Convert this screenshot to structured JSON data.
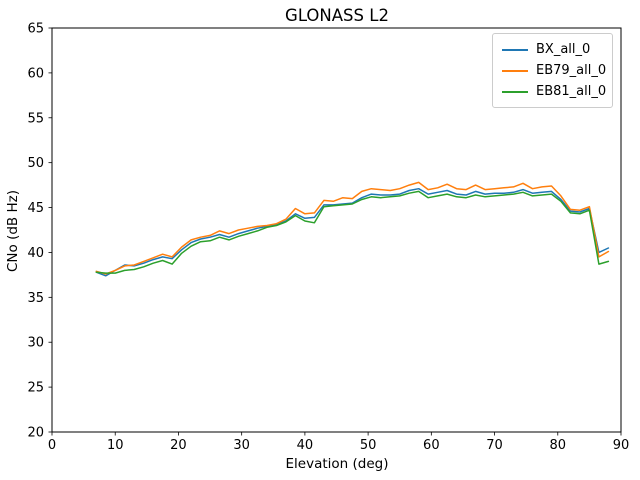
{
  "chart_data": {
    "type": "line",
    "title": "GLONASS L2",
    "xlabel": "Elevation (deg)",
    "ylabel": "CNo (dB Hz)",
    "xlim": [
      0,
      90
    ],
    "ylim": [
      20,
      65
    ],
    "xticks": [
      0,
      10,
      20,
      30,
      40,
      50,
      60,
      70,
      80,
      90
    ],
    "yticks": [
      20,
      25,
      30,
      35,
      40,
      45,
      50,
      55,
      60,
      65
    ],
    "grid": false,
    "legend_position": "upper right",
    "x": [
      7,
      8.5,
      10,
      11.5,
      13,
      14.5,
      16,
      17.5,
      19,
      20.5,
      22,
      23.5,
      25,
      26.5,
      28,
      29.5,
      31,
      32.5,
      34,
      35.5,
      37,
      38.5,
      40,
      41.5,
      43,
      44.5,
      46,
      47.5,
      49,
      50.5,
      52,
      53.5,
      55,
      56.5,
      58,
      59.5,
      61,
      62.5,
      64,
      65.5,
      67,
      68.5,
      70,
      71.5,
      73,
      74.5,
      76,
      77.5,
      79,
      80.5,
      82,
      83.5,
      85,
      86.5,
      88
    ],
    "series": [
      {
        "name": "BX_all_0",
        "color": "#1f77b4",
        "values": [
          37.8,
          37.4,
          38.0,
          38.6,
          38.5,
          38.8,
          39.2,
          39.5,
          39.3,
          40.3,
          41.1,
          41.5,
          41.7,
          42.0,
          41.7,
          42.1,
          42.4,
          42.7,
          42.9,
          43.1,
          43.5,
          44.3,
          43.8,
          43.9,
          45.3,
          45.3,
          45.4,
          45.5,
          46.1,
          46.5,
          46.4,
          46.4,
          46.5,
          46.9,
          47.1,
          46.5,
          46.7,
          46.9,
          46.5,
          46.4,
          46.8,
          46.5,
          46.6,
          46.6,
          46.7,
          47.0,
          46.6,
          46.7,
          46.8,
          45.9,
          44.6,
          44.5,
          44.9,
          40.0,
          40.5
        ]
      },
      {
        "name": "EB79_all_0",
        "color": "#ff7f0e",
        "values": [
          37.9,
          37.6,
          38.0,
          38.5,
          38.6,
          39.0,
          39.4,
          39.8,
          39.5,
          40.6,
          41.4,
          41.7,
          41.9,
          42.4,
          42.1,
          42.5,
          42.7,
          42.9,
          43.0,
          43.2,
          43.7,
          44.9,
          44.3,
          44.4,
          45.8,
          45.7,
          46.1,
          46.0,
          46.8,
          47.1,
          47.0,
          46.9,
          47.1,
          47.5,
          47.8,
          47.0,
          47.2,
          47.6,
          47.1,
          47.0,
          47.5,
          47.0,
          47.1,
          47.2,
          47.3,
          47.7,
          47.1,
          47.3,
          47.4,
          46.3,
          44.8,
          44.7,
          45.1,
          39.5,
          40.1
        ]
      },
      {
        "name": "EB81_all_0",
        "color": "#2ca02c",
        "values": [
          37.8,
          37.7,
          37.7,
          38.0,
          38.1,
          38.4,
          38.8,
          39.1,
          38.7,
          39.9,
          40.7,
          41.2,
          41.3,
          41.7,
          41.4,
          41.8,
          42.1,
          42.4,
          42.8,
          43.0,
          43.4,
          44.1,
          43.5,
          43.3,
          45.1,
          45.2,
          45.3,
          45.4,
          45.9,
          46.2,
          46.1,
          46.2,
          46.3,
          46.6,
          46.8,
          46.1,
          46.3,
          46.5,
          46.2,
          46.1,
          46.4,
          46.2,
          46.3,
          46.4,
          46.5,
          46.7,
          46.3,
          46.4,
          46.5,
          45.7,
          44.4,
          44.3,
          44.7,
          38.7,
          39.0
        ]
      }
    ]
  }
}
